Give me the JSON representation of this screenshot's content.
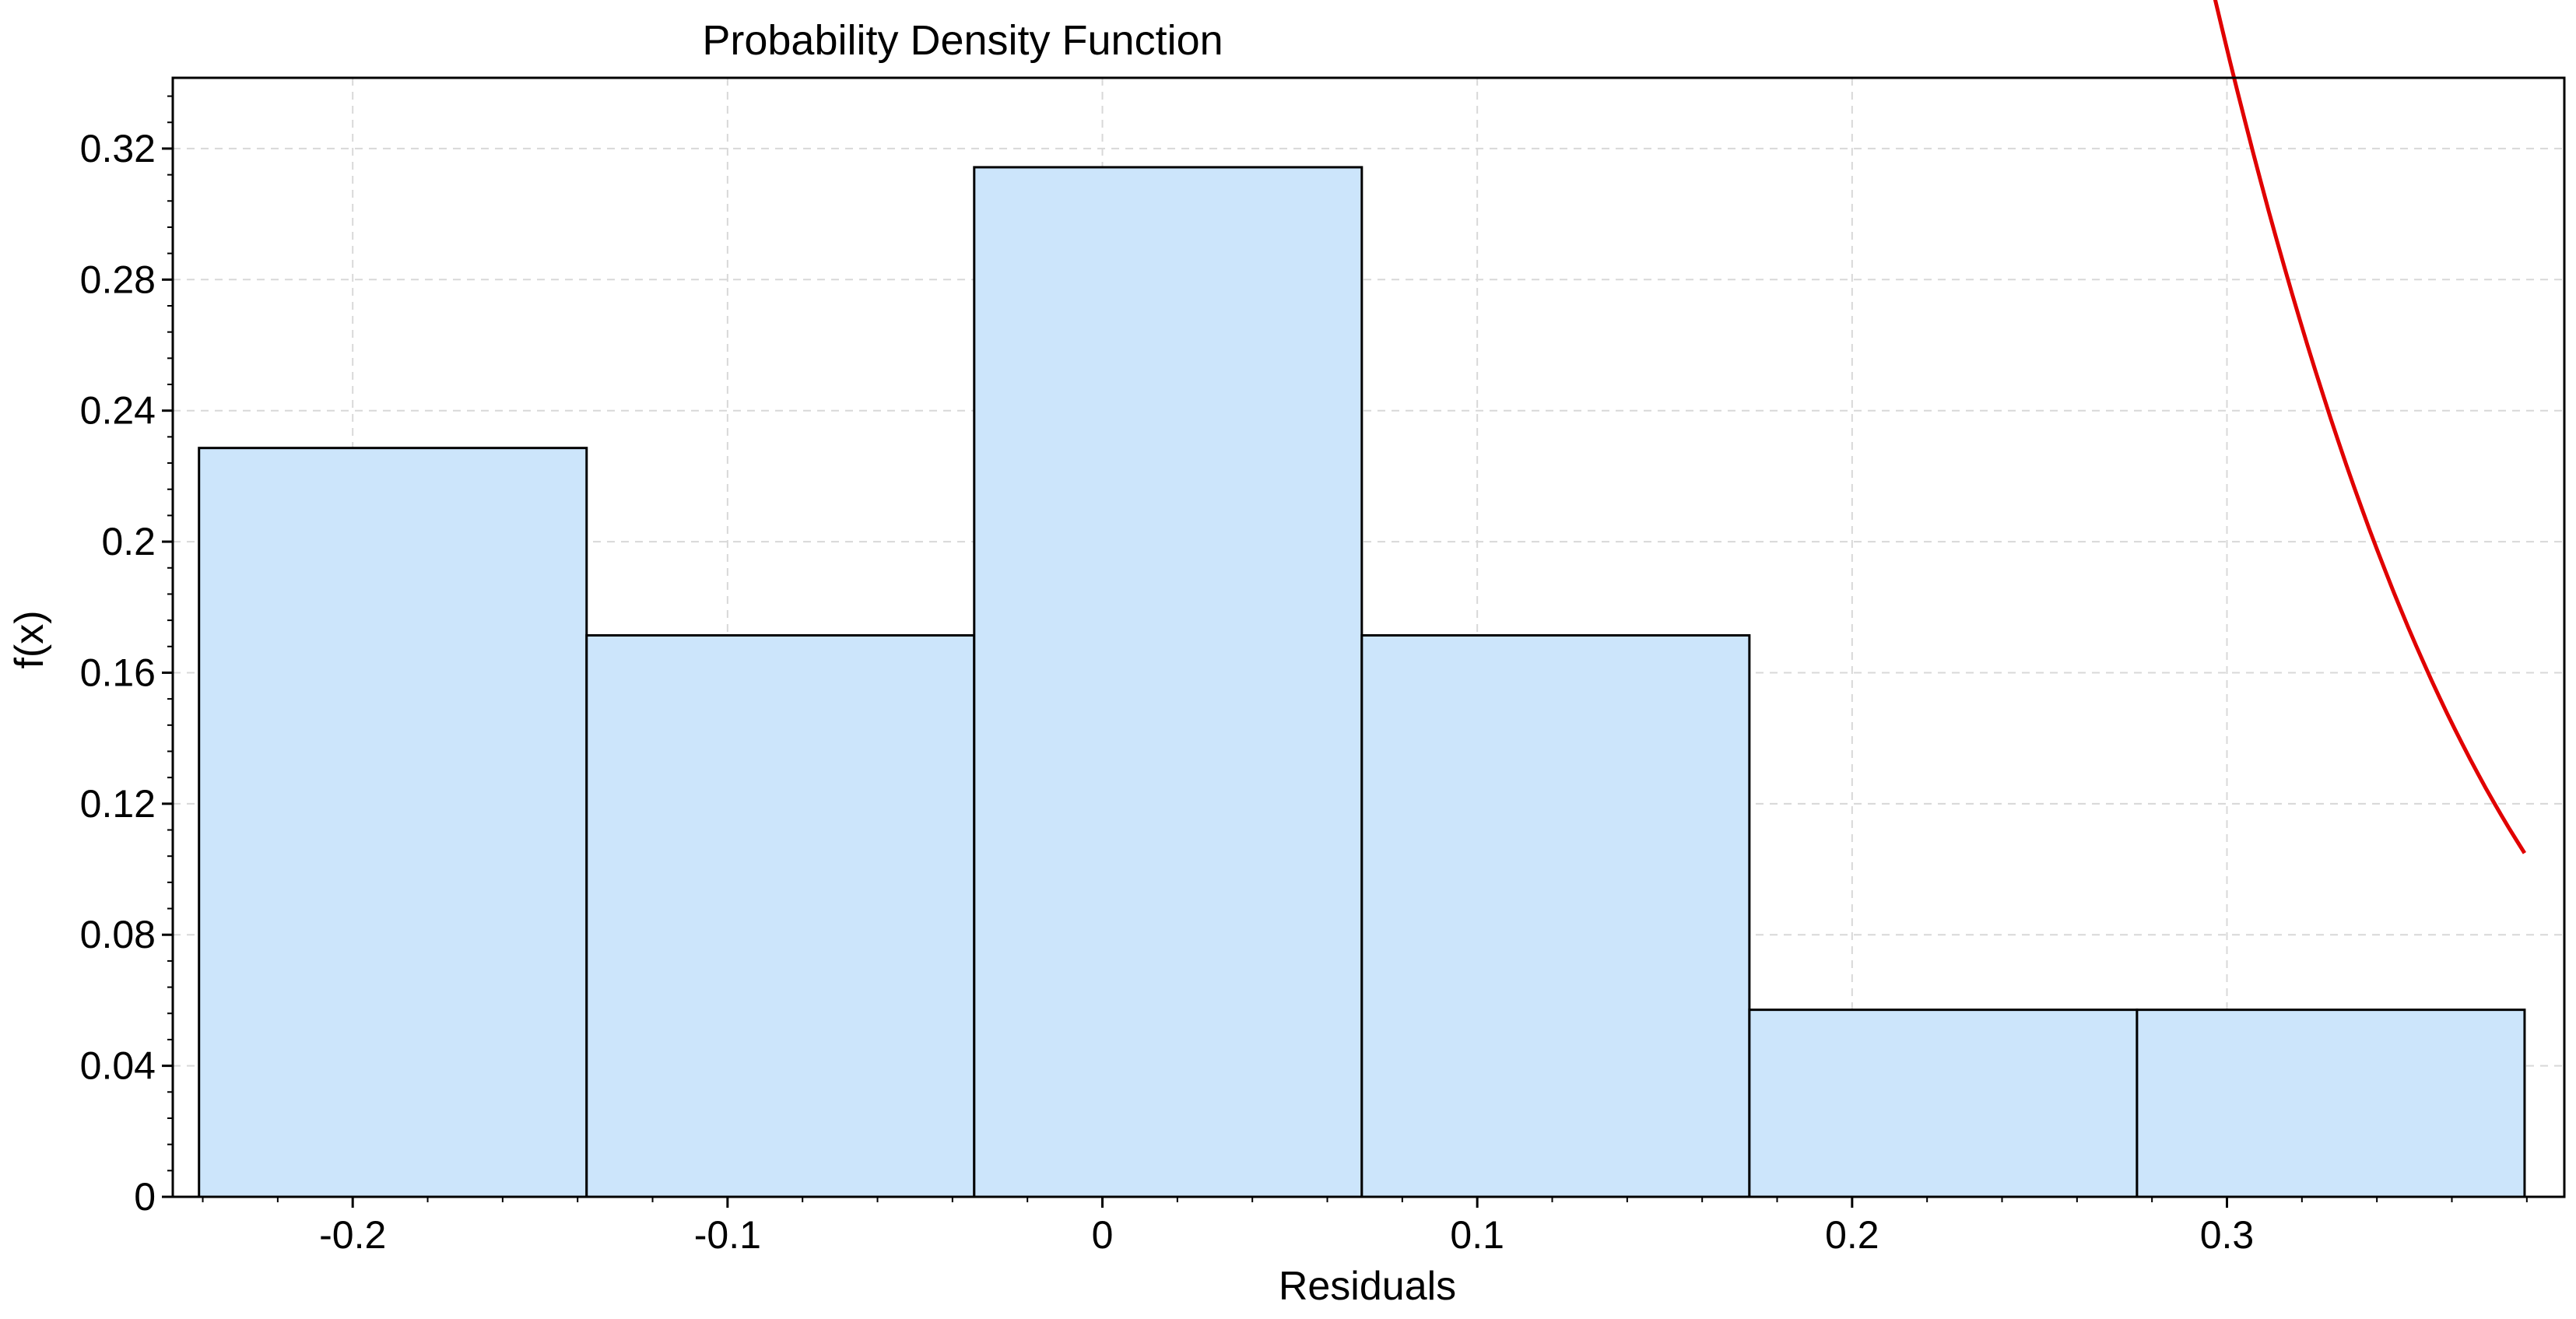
{
  "chart_data": {
    "type": "bar",
    "title": "Probability Density Function",
    "xlabel": "Residuals",
    "ylabel": "f(x)",
    "xlim": [
      -0.248,
      0.39
    ],
    "ylim": [
      0,
      0.3416
    ],
    "grid": true,
    "x_ticks": [
      -0.2,
      -0.1,
      0,
      0.1,
      0.2,
      0.3
    ],
    "x_tick_labels": [
      "-0.2",
      "-0.1",
      "0",
      "0.1",
      "0.2",
      "0.3"
    ],
    "y_ticks": [
      0,
      0.04,
      0.08,
      0.12,
      0.16,
      0.2,
      0.24,
      0.28,
      0.32
    ],
    "y_tick_labels": [
      "0",
      "0.04",
      "0.08",
      "0.12",
      "0.16",
      "0.2",
      "0.24",
      "0.28",
      "0.32"
    ],
    "histogram": {
      "bin_edges": [
        -0.241,
        -0.1376,
        -0.0342,
        0.0692,
        0.1726,
        0.276,
        0.3794
      ],
      "values": [
        0.2286,
        0.1714,
        0.3143,
        0.1714,
        0.0571,
        0.0571
      ],
      "fill": "#cce5fb",
      "edge": "#000000"
    },
    "curve": {
      "kind": "normal-pdf",
      "mean": -0.002,
      "sd": 0.15,
      "x_range": [
        -0.241,
        0.3794
      ],
      "color": "#e00000"
    }
  }
}
